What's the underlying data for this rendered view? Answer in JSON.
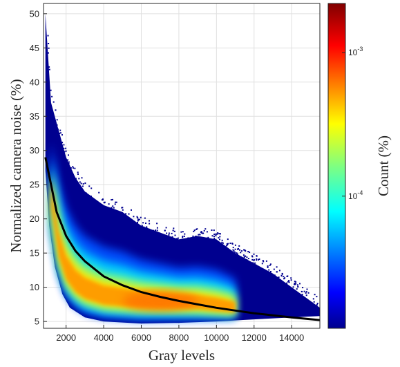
{
  "chart_data": {
    "type": "heatmap",
    "xlabel": "Gray levels",
    "ylabel": "Normalized camera noise (%)",
    "xlim": [
      800,
      15500
    ],
    "ylim": [
      4,
      51.5
    ],
    "xticks": [
      2000,
      4000,
      6000,
      8000,
      10000,
      12000,
      14000
    ],
    "xtick_labels": [
      "2000",
      "4000",
      "6000",
      "8000",
      "10000",
      "12000",
      "14000"
    ],
    "yticks": [
      5,
      10,
      15,
      20,
      25,
      30,
      35,
      40,
      45,
      50
    ],
    "ytick_labels": [
      "5",
      "10",
      "15",
      "20",
      "25",
      "30",
      "35",
      "40",
      "45",
      "50"
    ],
    "grid": true,
    "colorbar": {
      "label": "Count (%)",
      "scale": "log",
      "range": [
        1.2e-05,
        0.0022
      ],
      "ticks": [
        0.0001,
        0.001
      ],
      "tick_labels": [
        {
          "base": "10",
          "exp": "-4"
        },
        {
          "base": "10",
          "exp": "-3"
        }
      ],
      "colormap": "jet"
    },
    "density": {
      "upper_envelope": [
        {
          "x": 900,
          "y": 50
        },
        {
          "x": 1200,
          "y": 37
        },
        {
          "x": 1600,
          "y": 33
        },
        {
          "x": 2000,
          "y": 29
        },
        {
          "x": 2500,
          "y": 26
        },
        {
          "x": 3000,
          "y": 24
        },
        {
          "x": 4000,
          "y": 22
        },
        {
          "x": 5000,
          "y": 21
        },
        {
          "x": 6000,
          "y": 19
        },
        {
          "x": 7000,
          "y": 18
        },
        {
          "x": 8000,
          "y": 17
        },
        {
          "x": 9000,
          "y": 17.5
        },
        {
          "x": 10000,
          "y": 17
        },
        {
          "x": 11000,
          "y": 15
        },
        {
          "x": 12000,
          "y": 13.5
        },
        {
          "x": 13000,
          "y": 12
        },
        {
          "x": 14000,
          "y": 10
        },
        {
          "x": 15000,
          "y": 8
        },
        {
          "x": 15500,
          "y": 7
        }
      ],
      "lower_envelope": [
        {
          "x": 900,
          "y": 27
        },
        {
          "x": 1100,
          "y": 19
        },
        {
          "x": 1400,
          "y": 13
        },
        {
          "x": 1800,
          "y": 9
        },
        {
          "x": 2200,
          "y": 7
        },
        {
          "x": 3000,
          "y": 5.6
        },
        {
          "x": 4000,
          "y": 5.0
        },
        {
          "x": 6000,
          "y": 4.7
        },
        {
          "x": 8000,
          "y": 4.8
        },
        {
          "x": 10000,
          "y": 5.0
        },
        {
          "x": 12000,
          "y": 5.3
        },
        {
          "x": 14000,
          "y": 5.6
        },
        {
          "x": 15500,
          "y": 5.8
        }
      ],
      "ridge": [
        {
          "x": 1200,
          "y": 24
        },
        {
          "x": 1600,
          "y": 16
        },
        {
          "x": 2000,
          "y": 12.5
        },
        {
          "x": 2500,
          "y": 10.5
        },
        {
          "x": 3000,
          "y": 9.5
        },
        {
          "x": 4000,
          "y": 8.5
        },
        {
          "x": 5000,
          "y": 8.2
        },
        {
          "x": 6000,
          "y": 8.0
        },
        {
          "x": 7000,
          "y": 7.9
        },
        {
          "x": 8000,
          "y": 7.8
        },
        {
          "x": 9000,
          "y": 7.6
        },
        {
          "x": 10000,
          "y": 7.2
        },
        {
          "x": 11000,
          "y": 6.8
        }
      ],
      "peak_count_region": {
        "x": [
          5000,
          9000
        ],
        "y": [
          6.5,
          9.5
        ]
      }
    },
    "fit_curve": {
      "color": "#000000",
      "points": [
        {
          "x": 900,
          "y": 29.0
        },
        {
          "x": 1200,
          "y": 25.0
        },
        {
          "x": 1500,
          "y": 21.0
        },
        {
          "x": 2000,
          "y": 17.5
        },
        {
          "x": 2500,
          "y": 15.3
        },
        {
          "x": 3000,
          "y": 13.8
        },
        {
          "x": 4000,
          "y": 11.6
        },
        {
          "x": 5000,
          "y": 10.3
        },
        {
          "x": 6000,
          "y": 9.3
        },
        {
          "x": 7000,
          "y": 8.6
        },
        {
          "x": 8000,
          "y": 8.0
        },
        {
          "x": 9000,
          "y": 7.5
        },
        {
          "x": 10000,
          "y": 7.0
        },
        {
          "x": 11000,
          "y": 6.6
        },
        {
          "x": 12000,
          "y": 6.2
        },
        {
          "x": 13000,
          "y": 5.9
        },
        {
          "x": 14000,
          "y": 5.6
        },
        {
          "x": 15500,
          "y": 5.2
        }
      ]
    }
  }
}
